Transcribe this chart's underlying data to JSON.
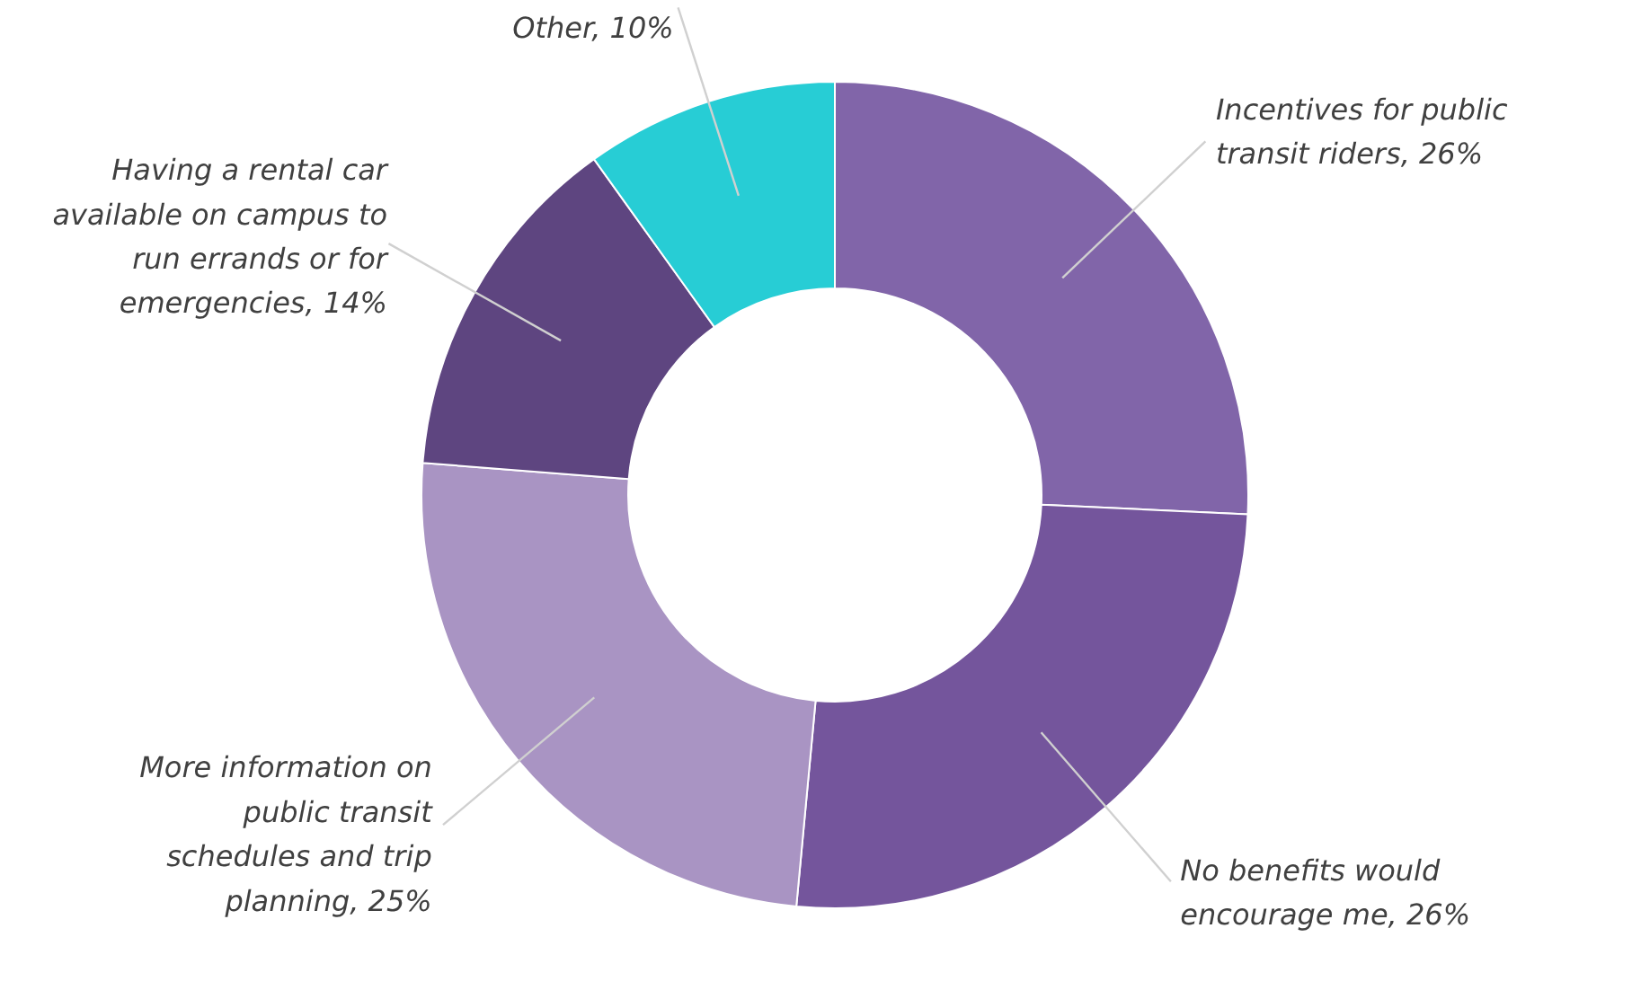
{
  "chart_data": {
    "type": "donut",
    "categories": [
      "Incentives for public transit riders",
      "No benefits would encourage me",
      "More information on public transit schedules and trip planning",
      "Having a rental car available on campus to run errands or for emergencies",
      "Other"
    ],
    "values": [
      26,
      26,
      25,
      14,
      10
    ],
    "value_labels": [
      "26%",
      "26%",
      "25%",
      "14%",
      "10%"
    ],
    "colors": [
      "#8165a9",
      "#74559c",
      "#a994c3",
      "#5e4580",
      "#27cdd5"
    ]
  }
}
